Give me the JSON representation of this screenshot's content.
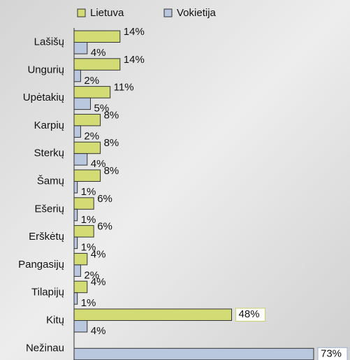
{
  "chart_data": {
    "type": "hbar",
    "categories": [
      "Lašišų",
      "Ungurių",
      "Upėtakių",
      "Karpių",
      "Sterkų",
      "Šamų",
      "Ešerių",
      "Erškėtų",
      "Pangasijų",
      "Tilapijų",
      "Kitų",
      "Nežinau"
    ],
    "series": [
      {
        "name": "Lietuva",
        "color": "#d3dc74",
        "values": [
          14,
          14,
          11,
          8,
          8,
          8,
          6,
          6,
          4,
          4,
          48,
          null
        ],
        "value_labels": [
          "14%",
          "14%",
          "11%",
          "8%",
          "8%",
          "8%",
          "6%",
          "6%",
          "4%",
          "4%",
          "48%",
          null
        ]
      },
      {
        "name": "Vokietija",
        "color": "#b9c7df",
        "values": [
          4,
          2,
          5,
          2,
          4,
          1,
          1,
          1,
          2,
          1,
          4,
          73
        ],
        "value_labels": [
          "4%",
          "2%",
          "5%",
          "2%",
          "4%",
          "1%",
          "1%",
          "1%",
          "2%",
          "1%",
          "4%",
          "73%"
        ]
      }
    ]
  }
}
